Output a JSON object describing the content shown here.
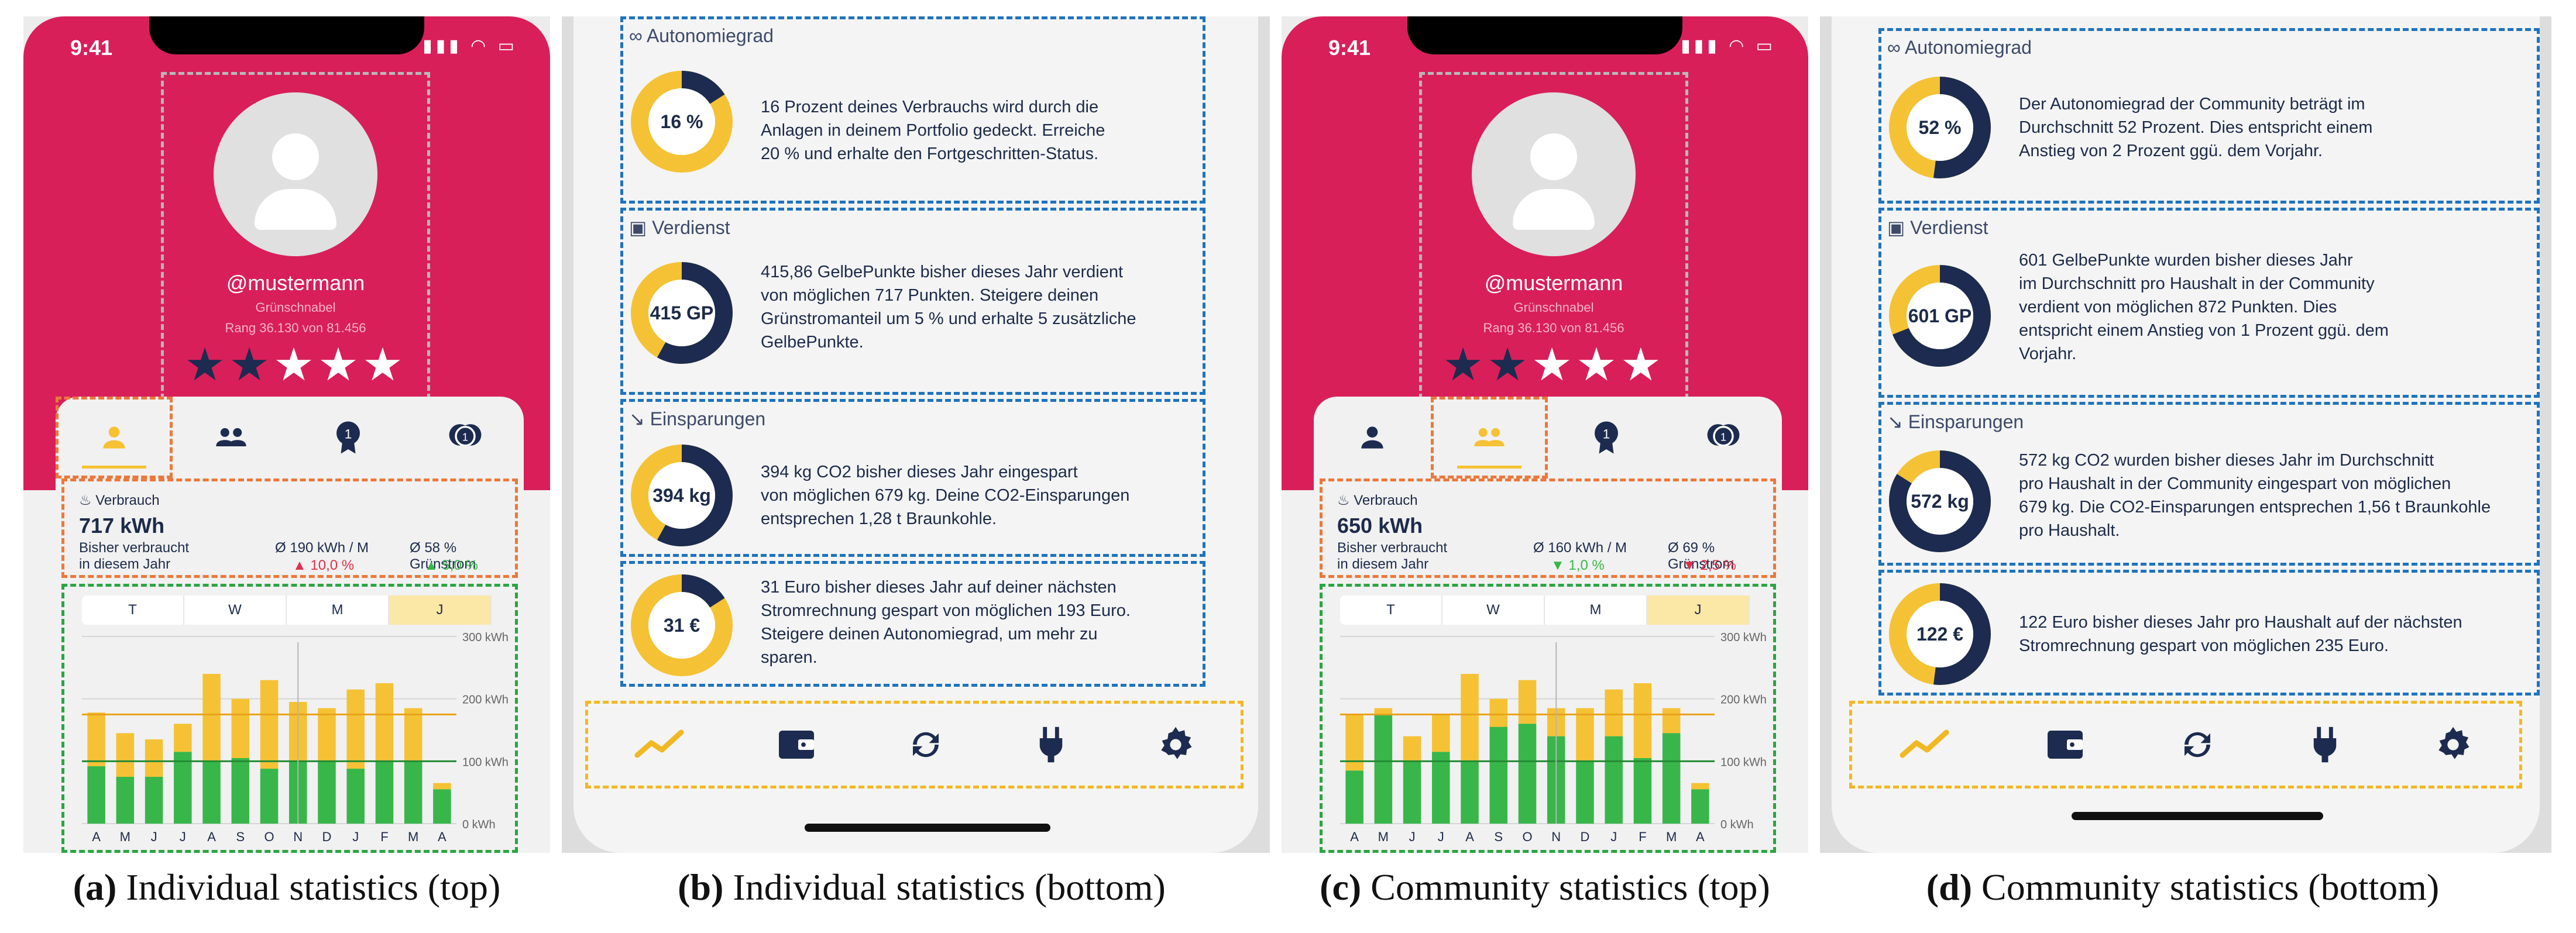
{
  "colors": {
    "brand": "#d81f5a",
    "navy": "#1c2b4f",
    "yellow": "#f5c235",
    "green": "#38b64a",
    "red": "#e0304b"
  },
  "captions": [
    {
      "letter": "(a)",
      "text": "Individual statistics (top)"
    },
    {
      "letter": "(b)",
      "text": "Individual statistics (bottom)"
    },
    {
      "letter": "(c)",
      "text": "Community statistics (top)"
    },
    {
      "letter": "(d)",
      "text": "Community statistics (bottom)"
    }
  ],
  "status": {
    "time": "9:41",
    "icons": "▮▮▮ ◠ ▭"
  },
  "profile": {
    "username": "@mustermann",
    "title": "Grünschnabel",
    "rank": "Rang 36.130 von 81.456",
    "stars_filled": 2,
    "stars_total": 5
  },
  "tabs": [
    {
      "icon": "user-icon"
    },
    {
      "icon": "community-icon"
    },
    {
      "icon": "medal-icon"
    },
    {
      "icon": "badge-icon"
    }
  ],
  "individual_summary": {
    "label": "Verbrauch",
    "value": "717 kWh",
    "sub1": "Bisher verbraucht",
    "sub2": "in diesem Jahr",
    "avg1": "Ø 190 kWh / M",
    "avg2": "Ø 58 % Grünstrom",
    "change1": "▲ 10,0 %",
    "change2": "▲ 5,0 %"
  },
  "community_summary": {
    "label": "Verbrauch",
    "value": "650 kWh",
    "sub1": "Bisher verbraucht",
    "sub2": "in diesem Jahr",
    "avg1": "Ø 160 kWh / M",
    "avg2": "Ø 69 % Grünstrom",
    "change1": "▼ 1,0 %",
    "change2": "▼ 2,5 %"
  },
  "periods": [
    "T",
    "W",
    "M",
    "J"
  ],
  "selected_period": "J",
  "chart_data": [
    {
      "type": "bar",
      "categories": [
        "A",
        "M",
        "J",
        "J",
        "A",
        "S",
        "O",
        "N",
        "D",
        "J",
        "F",
        "M",
        "A"
      ],
      "series": [
        {
          "values": [
            92,
            75,
            75,
            115,
            100,
            105,
            88,
            100,
            100,
            88,
            100,
            100,
            55
          ]
        },
        {
          "values": [
            178,
            145,
            135,
            160,
            240,
            200,
            230,
            195,
            185,
            215,
            225,
            185,
            65
          ]
        }
      ],
      "ylim": [
        0,
        300
      ],
      "yticks": [
        "300 kWh",
        "200 kWh",
        "100 kWh",
        "0 kWh"
      ],
      "reference_lines": [
        175,
        100
      ]
    },
    {
      "type": "bar",
      "categories": [
        "A",
        "M",
        "J",
        "J",
        "A",
        "S",
        "O",
        "N",
        "D",
        "J",
        "F",
        "M",
        "A"
      ],
      "series": [
        {
          "values": [
            85,
            175,
            100,
            115,
            100,
            155,
            160,
            140,
            100,
            140,
            105,
            145,
            55
          ]
        },
        {
          "values": [
            175,
            185,
            140,
            175,
            240,
            200,
            230,
            185,
            185,
            215,
            225,
            185,
            65
          ]
        }
      ],
      "ylim": [
        0,
        300
      ],
      "yticks": [
        "300 kWh",
        "200 kWh",
        "100 kWh",
        "0 kWh"
      ],
      "reference_lines": [
        175,
        100
      ]
    }
  ],
  "individual_cards": [
    {
      "icon": "infinity-icon",
      "title": "Autonomiegrad",
      "donut": "16 %",
      "fraction": 0.16,
      "lines": [
        "16 Prozent deines Verbrauchs wird durch die",
        "Anlagen in deinem Portfolio gedeckt. Erreiche",
        "20 % und erhalte den Fortgeschritten-Status."
      ]
    },
    {
      "icon": "wallet-icon",
      "title": "Verdienst",
      "donut": "415 GP",
      "fraction": 0.58,
      "lines": [
        "415,86 GelbePunkte bisher dieses Jahr verdient",
        "von möglichen 717 Punkten. Steigere deinen",
        "Grünstromanteil um 5 % und erhalte 5 zusätzliche",
        "GelbePunkte."
      ]
    },
    {
      "icon": "trend-icon",
      "title": "Einsparungen",
      "donut": "394 kg",
      "fraction": 0.58,
      "lines": [
        "394 kg CO2 bisher dieses Jahr eingespart",
        "von möglichen 679 kg. Deine CO2-Einsparungen",
        "entsprechen 1,28 t Braunkohle."
      ]
    },
    {
      "icon": "",
      "title": "",
      "donut": "31 €",
      "fraction": 0.16,
      "lines": [
        "31 Euro bisher dieses Jahr auf deiner nächsten",
        "Stromrechnung gespart von möglichen 193 Euro.",
        "Steigere deinen Autonomiegrad, um mehr zu",
        "sparen."
      ]
    }
  ],
  "community_cards": [
    {
      "icon": "infinity-icon",
      "title": "Autonomiegrad",
      "donut": "52 %",
      "fraction": 0.52,
      "lines": [
        "Der Autonomiegrad der Community beträgt im",
        "Durchschnitt 52 Prozent. Dies entspricht einem",
        "Anstieg von 2 Prozent ggü. dem Vorjahr."
      ]
    },
    {
      "icon": "wallet-icon",
      "title": "Verdienst",
      "donut": "601 GP",
      "fraction": 0.69,
      "lines": [
        "601 GelbePunkte wurden bisher dieses Jahr",
        "im Durchschnitt pro Haushalt in der Community",
        "verdient von möglichen 872 Punkten. Dies",
        "entspricht einem Anstieg von 1 Prozent ggü. dem",
        "Vorjahr."
      ]
    },
    {
      "icon": "trend-icon",
      "title": "Einsparungen",
      "donut": "572 kg",
      "fraction": 0.84,
      "lines": [
        "572 kg CO2 wurden bisher dieses Jahr im Durchschnitt",
        "pro Haushalt in der Community eingespart von möglichen",
        "679 kg. Die CO2-Einsparungen entsprechen 1,56 t Braunkohle",
        "pro Haushalt."
      ]
    },
    {
      "icon": "",
      "title": "",
      "donut": "122 €",
      "fraction": 0.52,
      "lines": [
        "122 Euro bisher dieses Jahr pro Haushalt auf der nächsten",
        "Stromrechnung gespart von möglichen 235 Euro."
      ]
    }
  ],
  "nav": [
    {
      "icon": "chart-line-icon"
    },
    {
      "icon": "wallet-icon"
    },
    {
      "icon": "sync-icon"
    },
    {
      "icon": "plug-icon"
    },
    {
      "icon": "gear-icon"
    }
  ]
}
